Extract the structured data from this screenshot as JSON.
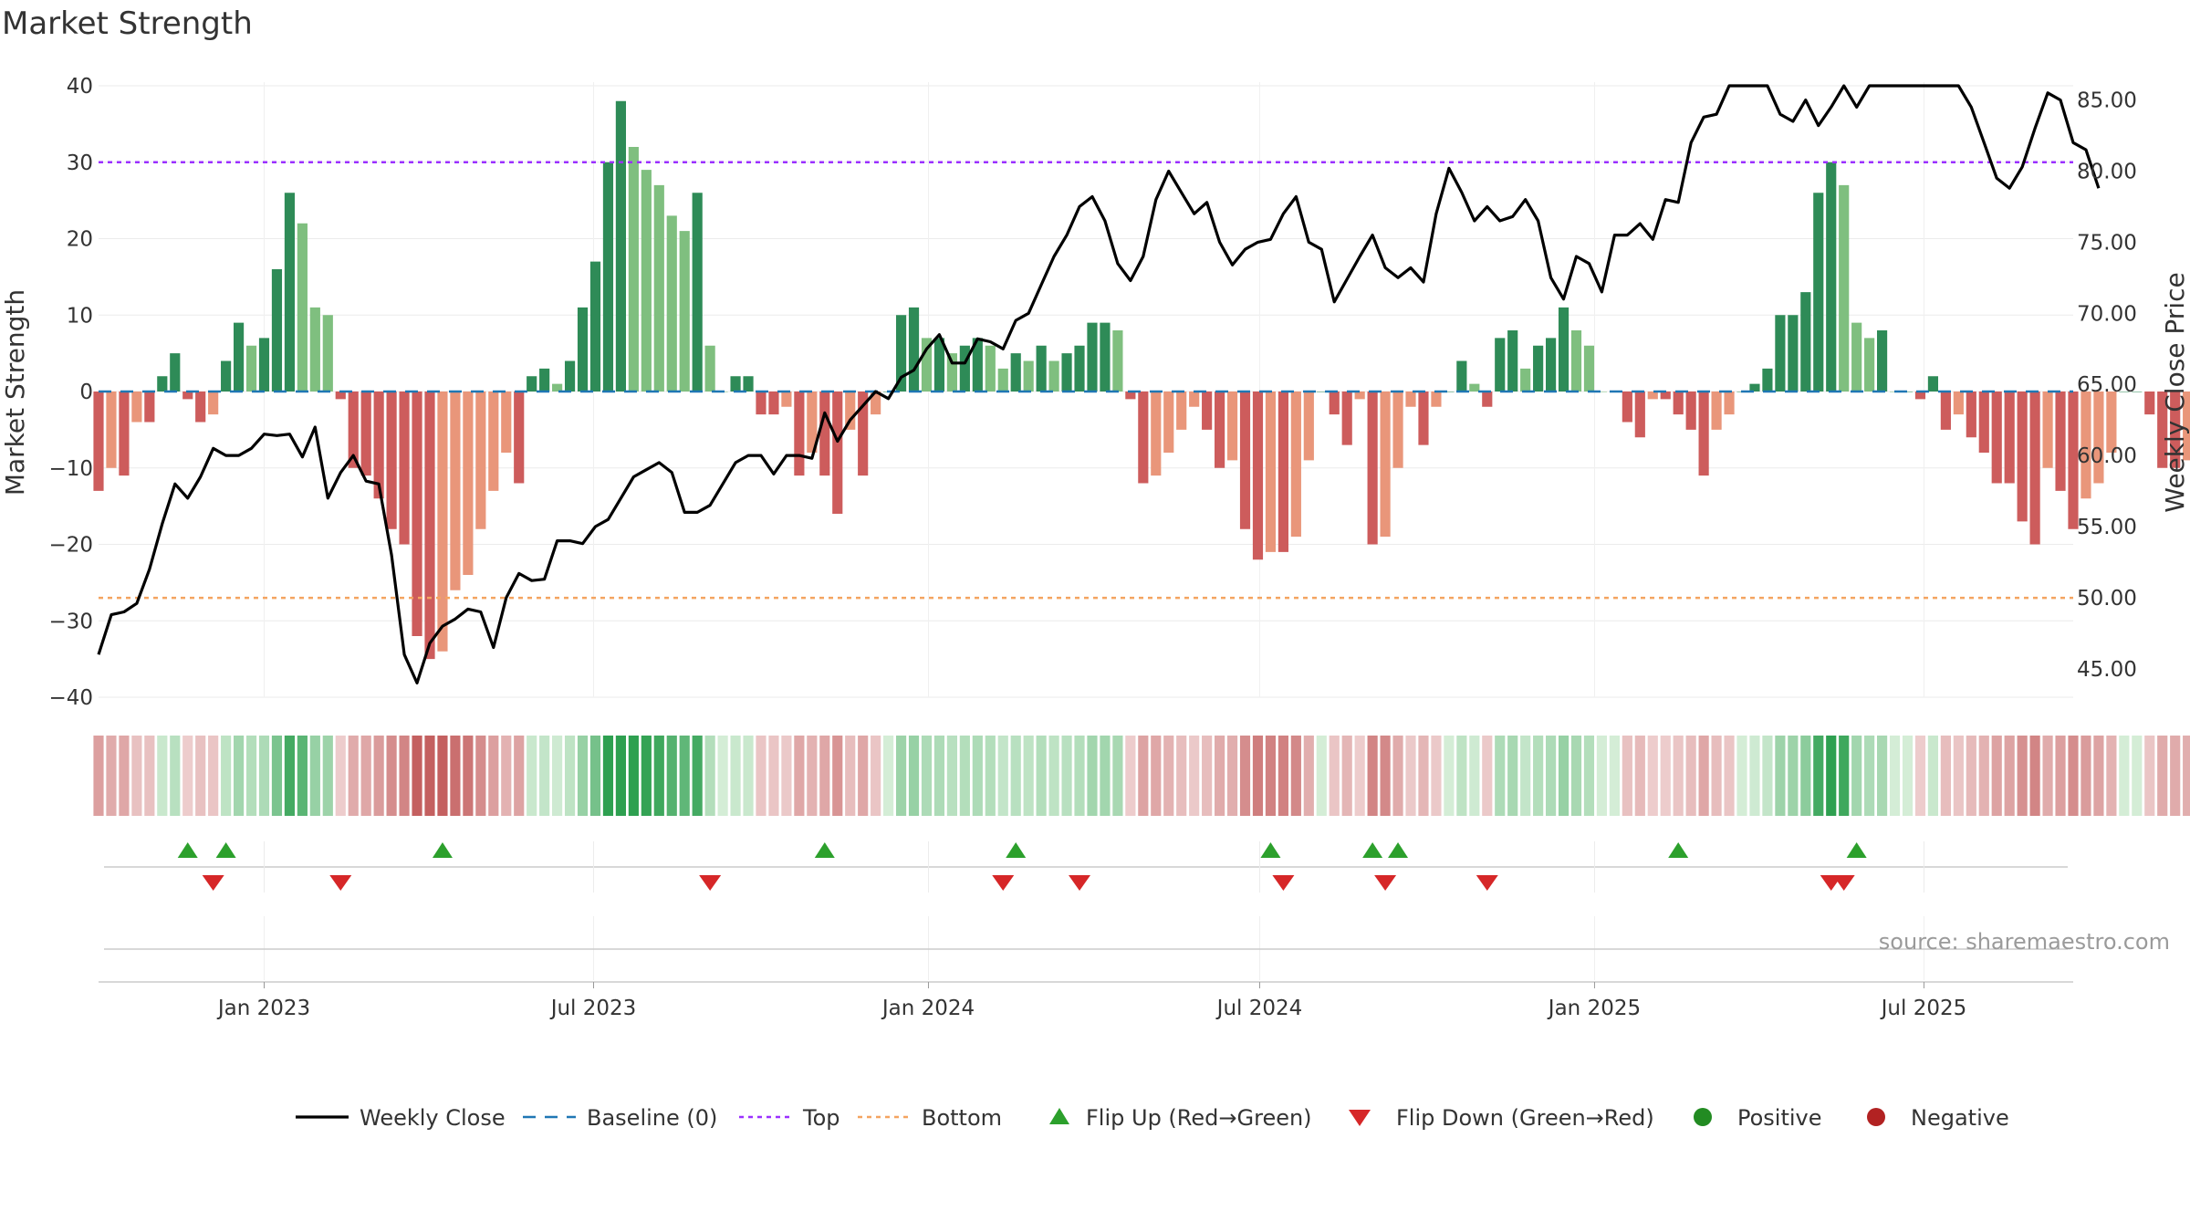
{
  "title": "Market Strength",
  "source": "source: sharemaestro.com",
  "colors": {
    "strong_green": "#2e8b57",
    "light_green": "#7fbf7f",
    "strong_red": "#cd5c5c",
    "light_red": "#e9967a",
    "close_line": "#000000",
    "baseline": "#1f77b4",
    "top_line": "#9b30ff",
    "bottom_line": "#f4a460",
    "flip_up": "#2ca02c",
    "flip_down": "#d62728",
    "positive_dot": "#228b22",
    "negative_dot": "#b22222"
  },
  "chart_data": {
    "type": "bar",
    "title": "Market Strength",
    "ylabel": "Market Strength",
    "y2label": "Weekly Close Price",
    "ylim": [
      -40,
      40
    ],
    "y2lim": [
      43.0,
      86.0
    ],
    "yticks": [
      "40",
      "30",
      "20",
      "10",
      "0",
      "−10",
      "−20",
      "−30",
      "−40"
    ],
    "y2ticks": [
      "85.00",
      "80.00",
      "75.00",
      "70.00",
      "65.00",
      "60.00",
      "55.00",
      "50.00",
      "45.00"
    ],
    "x_ticks": [
      {
        "date": "2023-01-01",
        "label": "Jan 2023"
      },
      {
        "date": "2023-07-01",
        "label": "Jul 2023"
      },
      {
        "date": "2024-01-01",
        "label": "Jan 2024"
      },
      {
        "date": "2024-07-01",
        "label": "Jul 2024"
      },
      {
        "date": "2025-01-01",
        "label": "Jan 2025"
      },
      {
        "date": "2025-07-01",
        "label": "Jul 2025"
      }
    ],
    "x_range": [
      "2022-10-02",
      "2025-09-21"
    ],
    "top_level": 30,
    "bottom_level": -27,
    "baseline": 0,
    "strength": [
      -13,
      -10,
      -11,
      -4,
      -4,
      2,
      5,
      -1,
      -4,
      -3,
      4,
      9,
      6,
      7,
      16,
      26,
      22,
      11,
      10,
      -1,
      -10,
      -11,
      -14,
      -18,
      -20,
      -32,
      -35,
      -34,
      -26,
      -24,
      -18,
      -13,
      -8,
      -12,
      2,
      3,
      1,
      4,
      11,
      17,
      30,
      38,
      32,
      29,
      27,
      23,
      21,
      26,
      6,
      0,
      2,
      2,
      -3,
      -3,
      -2,
      -11,
      -8,
      -11,
      -16,
      -5,
      -11,
      -3,
      0,
      10,
      11,
      7,
      7,
      5,
      6,
      7,
      6,
      3,
      5,
      4,
      6,
      4,
      5,
      6,
      9,
      9,
      8,
      -1,
      -12,
      -11,
      -8,
      -5,
      -2,
      -5,
      -10,
      -9,
      -18,
      -22,
      -21,
      -21,
      -19,
      -9,
      0,
      -3,
      -7,
      -1,
      -20,
      -19,
      -10,
      -2,
      -7,
      -2,
      0,
      4,
      1,
      -2,
      7,
      8,
      3,
      6,
      7,
      11,
      8,
      6,
      0,
      0,
      -4,
      -6,
      -1,
      -1,
      -3,
      -5,
      -11,
      -5,
      -3,
      0,
      1,
      3,
      10,
      10,
      13,
      26,
      30,
      27,
      9,
      7,
      8,
      0,
      0,
      -1,
      2,
      -5,
      -3,
      -6,
      -8,
      -12,
      -12,
      -17,
      -20,
      -10,
      -13,
      -18,
      -14,
      -12,
      -8,
      0,
      0,
      -3,
      -10,
      -10,
      -9
    ],
    "weekly_close": [
      46.0,
      48.8,
      49.0,
      49.6,
      52.0,
      55.2,
      58.0,
      57.0,
      58.5,
      60.5,
      60.0,
      60.0,
      60.5,
      61.5,
      61.4,
      61.5,
      59.9,
      62.0,
      57.0,
      58.8,
      60.0,
      58.2,
      58.0,
      53.0,
      46.0,
      44.0,
      46.8,
      48.0,
      48.5,
      49.2,
      49.0,
      46.5,
      50.0,
      51.7,
      51.2,
      51.3,
      54.0,
      54.0,
      53.8,
      55.0,
      55.5,
      57.0,
      58.5,
      59.0,
      59.5,
      58.8,
      56.0,
      56.0,
      56.5,
      58.0,
      59.5,
      60.0,
      60.0,
      58.7,
      60.0,
      60.0,
      59.8,
      63.0,
      61.0,
      62.5,
      63.5,
      64.5,
      64.0,
      65.5,
      66.0,
      67.5,
      68.5,
      66.5,
      66.5,
      68.2,
      68.0,
      67.5,
      69.5,
      70.0,
      72.0,
      74.0,
      75.5,
      77.5,
      78.2,
      76.5,
      73.5,
      72.3,
      74.0,
      78.0,
      80.0,
      78.5,
      77.0,
      77.8,
      75.0,
      73.4,
      74.5,
      75.0,
      75.2,
      77.0,
      78.2,
      75.0,
      74.5,
      70.8,
      72.4,
      74.0,
      75.5,
      73.2,
      72.5,
      73.2,
      72.2,
      77.0,
      80.2,
      78.5,
      76.5,
      77.5,
      76.5,
      76.8,
      78.0,
      76.5,
      72.5,
      71.0,
      74.0,
      73.5,
      71.5,
      75.5,
      75.5,
      76.3,
      75.2,
      78.0,
      77.8,
      82.0,
      83.8,
      84.0,
      86.8,
      88.0,
      89.0,
      91.0,
      84.0,
      83.5,
      85.0,
      83.2,
      84.5,
      86.0,
      84.5,
      86.0,
      88.0,
      90.0,
      90.5,
      88.5,
      90.0,
      87.5,
      86.5,
      84.5,
      82.0,
      79.5,
      78.8,
      80.3,
      83.0,
      85.5,
      85.0,
      82.0,
      81.5,
      78.8
    ],
    "flip_up_dates": [
      "2022-11-20",
      "2022-12-11",
      "2023-04-09",
      "2023-11-05",
      "2024-02-18",
      "2024-07-07",
      "2024-09-01",
      "2024-09-15",
      "2025-02-16",
      "2025-05-25"
    ],
    "flip_down_dates": [
      "2022-12-04",
      "2023-02-12",
      "2023-09-03",
      "2024-02-11",
      "2024-03-24",
      "2024-07-14",
      "2024-09-08",
      "2024-11-03",
      "2025-05-11",
      "2025-05-18"
    ],
    "legend": [
      "Weekly Close",
      "Baseline (0)",
      "Top",
      "Bottom",
      "Flip Up (Red→Green)",
      "Flip Down (Green→Red)",
      "Positive",
      "Negative"
    ]
  }
}
